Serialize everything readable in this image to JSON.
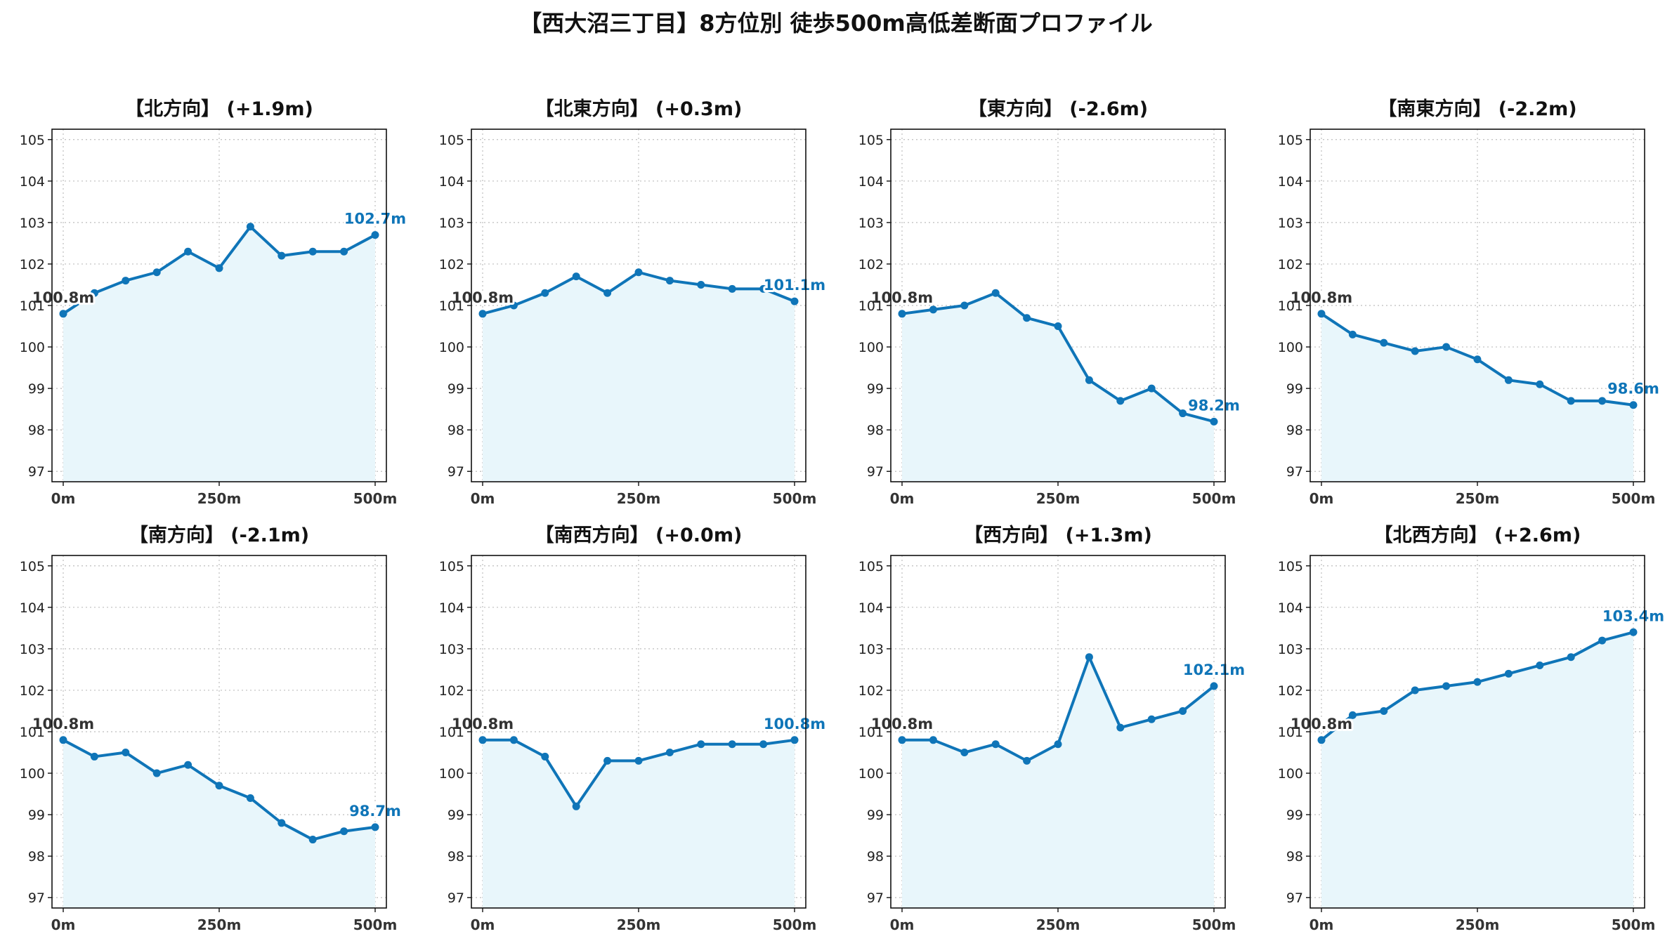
{
  "chart_data": {
    "title": "【西大沼三丁目】8方位別 徒歩500m高低差断面プロファイル",
    "type": "area",
    "x": [
      0,
      50,
      100,
      150,
      200,
      250,
      300,
      350,
      400,
      450,
      500
    ],
    "x_ticks": [
      "0m",
      "250m",
      "500m"
    ],
    "y_ticks": [
      "97",
      "98",
      "99",
      "100",
      "101",
      "102",
      "103",
      "104",
      "105"
    ],
    "ylim": [
      96.75,
      105.25
    ],
    "grid": true,
    "colors": {
      "line": "#0f75b8",
      "fill": "#e8f6fb",
      "start_label": "#333333",
      "end_label": "#0f75b8",
      "grid": "#bdbdbd"
    },
    "subplots": [
      {
        "title": "【北方向】 (+1.9m)",
        "start_label": "100.8m",
        "end_label": "102.7m",
        "values": [
          100.8,
          101.3,
          101.6,
          101.8,
          102.3,
          101.9,
          102.9,
          102.2,
          102.3,
          102.3,
          102.7
        ]
      },
      {
        "title": "【北東方向】 (+0.3m)",
        "start_label": "100.8m",
        "end_label": "101.1m",
        "values": [
          100.8,
          101.0,
          101.3,
          101.7,
          101.3,
          101.8,
          101.6,
          101.5,
          101.4,
          101.4,
          101.1
        ]
      },
      {
        "title": "【東方向】 (-2.6m)",
        "start_label": "100.8m",
        "end_label": "98.2m",
        "values": [
          100.8,
          100.9,
          101.0,
          101.3,
          100.7,
          100.5,
          99.2,
          98.7,
          99.0,
          98.4,
          98.2
        ]
      },
      {
        "title": "【南東方向】 (-2.2m)",
        "start_label": "100.8m",
        "end_label": "98.6m",
        "values": [
          100.8,
          100.3,
          100.1,
          99.9,
          100.0,
          99.7,
          99.2,
          99.1,
          98.7,
          98.7,
          98.6
        ]
      },
      {
        "title": "【南方向】 (-2.1m)",
        "start_label": "100.8m",
        "end_label": "98.7m",
        "values": [
          100.8,
          100.4,
          100.5,
          100.0,
          100.2,
          99.7,
          99.4,
          98.8,
          98.4,
          98.6,
          98.7
        ]
      },
      {
        "title": "【南西方向】 (+0.0m)",
        "start_label": "100.8m",
        "end_label": "100.8m",
        "values": [
          100.8,
          100.8,
          100.4,
          99.2,
          100.3,
          100.3,
          100.5,
          100.7,
          100.7,
          100.7,
          100.8
        ]
      },
      {
        "title": "【西方向】 (+1.3m)",
        "start_label": "100.8m",
        "end_label": "102.1m",
        "values": [
          100.8,
          100.8,
          100.5,
          100.7,
          100.3,
          100.7,
          102.8,
          101.1,
          101.3,
          101.5,
          102.1
        ]
      },
      {
        "title": "【北西方向】 (+2.6m)",
        "start_label": "100.8m",
        "end_label": "103.4m",
        "values": [
          100.8,
          101.4,
          101.5,
          102.0,
          102.1,
          102.2,
          102.4,
          102.6,
          102.8,
          103.2,
          103.4
        ]
      }
    ]
  }
}
